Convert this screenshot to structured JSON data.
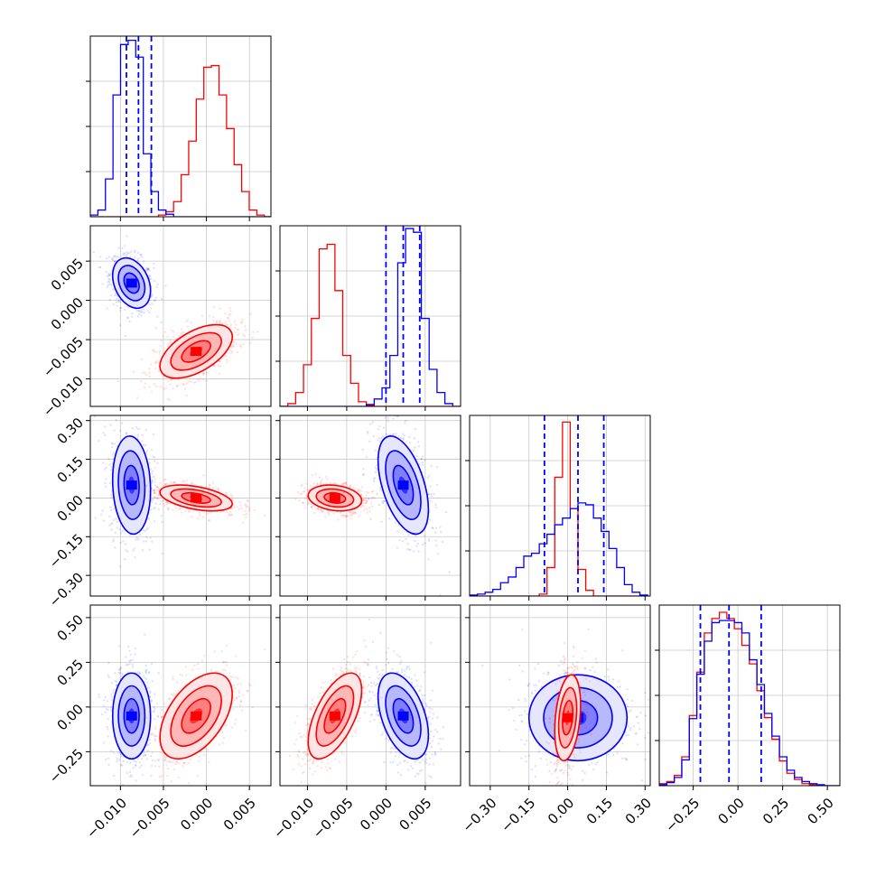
{
  "chart_data": {
    "type": "corner",
    "n_params": 4,
    "series": [
      {
        "color": "#0000ff"
      },
      {
        "color": "#ff0000"
      }
    ],
    "param_ranges": [
      [
        -0.0135,
        0.0075
      ],
      [
        -0.0135,
        0.0095
      ],
      [
        -0.38,
        0.32
      ],
      [
        -0.44,
        0.57
      ]
    ],
    "tick_labels": [
      {
        "values": [
          -0.01,
          -0.005,
          0.0,
          0.005
        ],
        "labels": [
          "−0.010",
          "−0.005",
          "0.000",
          "0.005"
        ]
      },
      {
        "values": [
          -0.01,
          -0.005,
          0.0,
          0.005
        ],
        "labels": [
          "−0.010",
          "−0.005",
          "0.000",
          "0.005"
        ]
      },
      {
        "values": [
          -0.3,
          -0.15,
          0.0,
          0.15,
          0.3
        ],
        "labels": [
          "−0.30",
          "−0.15",
          "0.00",
          "0.15",
          "0.30"
        ]
      },
      {
        "values": [
          -0.25,
          0.0,
          0.25,
          0.5
        ],
        "labels": [
          "−0.25",
          "0.00",
          "0.25",
          "0.50"
        ]
      }
    ],
    "marginals": [
      {
        "ymax": 215,
        "series": [
          {
            "name": "",
            "color": "#0000ff",
            "quantiles": [
              -0.0093,
              -0.0079,
              -0.0064
            ],
            "bins": [
              -0.0135,
              -0.01262,
              -0.01174,
              -0.01086,
              -0.00998,
              -0.0091,
              -0.00822,
              -0.00734,
              -0.00646,
              -0.00558,
              -0.0047,
              -0.00382,
              -0.00294,
              -0.00206,
              -0.00118,
              -0.0003,
              0.00058,
              0.00146,
              0.00234,
              0.00322,
              0.0041,
              0.00498,
              0.00586,
              0.00674,
              0.0075
            ],
            "counts": [
              2,
              8,
              45,
              145,
              205,
              210,
              190,
              75,
              30,
              8,
              3,
              0,
              0,
              0,
              0,
              0,
              0,
              0,
              0,
              0,
              0,
              0,
              0,
              0
            ]
          },
          {
            "name": "",
            "color": "#ff0000",
            "quantiles": [],
            "bins": [
              -0.0135,
              -0.01262,
              -0.01174,
              -0.01086,
              -0.00998,
              -0.0091,
              -0.00822,
              -0.00734,
              -0.00646,
              -0.00558,
              -0.0047,
              -0.00382,
              -0.00294,
              -0.00206,
              -0.00118,
              -0.0003,
              0.00058,
              0.00146,
              0.00234,
              0.00322,
              0.0041,
              0.00498,
              0.00586,
              0.00674,
              0.0075
            ],
            "counts": [
              0,
              0,
              0,
              0,
              0,
              0,
              0,
              0,
              0,
              2,
              6,
              18,
              50,
              90,
              140,
              178,
              180,
              145,
              105,
              62,
              30,
              8,
              2,
              0
            ]
          }
        ]
      },
      {
        "ymax": 195,
        "series": [
          {
            "name": "",
            "color": "#0000ff",
            "quantiles": [
              0.0,
              0.0022,
              0.0043
            ],
            "bins": [
              -0.0135,
              -0.0125,
              -0.0115,
              -0.0105,
              -0.0095,
              -0.0085,
              -0.0075,
              -0.0065,
              -0.0055,
              -0.0045,
              -0.0035,
              -0.0025,
              -0.0015,
              -0.0005,
              0.0005,
              0.0015,
              0.0025,
              0.0035,
              0.0045,
              0.0055,
              0.0065,
              0.0075,
              0.0085,
              0.0095
            ],
            "counts": [
              0,
              0,
              0,
              0,
              0,
              0,
              0,
              0,
              0,
              0,
              0,
              2,
              8,
              20,
              55,
              155,
              192,
              188,
              95,
              40,
              15,
              3,
              0
            ]
          },
          {
            "name": "",
            "color": "#ff0000",
            "quantiles": [],
            "bins": [
              -0.0135,
              -0.0125,
              -0.0115,
              -0.0105,
              -0.0095,
              -0.0085,
              -0.0075,
              -0.0065,
              -0.0055,
              -0.0045,
              -0.0035,
              -0.0025,
              -0.0015,
              -0.0005,
              0.0005,
              0.0015,
              0.0025,
              0.0035,
              0.0045,
              0.0055,
              0.0065,
              0.0075,
              0.0085,
              0.0095
            ],
            "counts": [
              0,
              3,
              15,
              45,
              95,
              170,
              175,
              125,
              55,
              25,
              5,
              1,
              0,
              0,
              0,
              0,
              0,
              0,
              0,
              0,
              0,
              0,
              0
            ]
          }
        ]
      },
      {
        "ymax": 190,
        "series": [
          {
            "name": "",
            "color": "#0000ff",
            "quantiles": [
              -0.09,
              0.04,
              0.14
            ],
            "bins": [
              -0.38,
              -0.35,
              -0.32,
              -0.29,
              -0.26,
              -0.23,
              -0.2,
              -0.17,
              -0.14,
              -0.11,
              -0.08,
              -0.05,
              -0.02,
              0.01,
              0.04,
              0.07,
              0.1,
              0.13,
              0.16,
              0.19,
              0.22,
              0.25,
              0.28,
              0.31
            ],
            "counts": [
              1,
              2,
              4,
              7,
              14,
              20,
              30,
              42,
              45,
              55,
              65,
              75,
              82,
              92,
              98,
              96,
              82,
              68,
              50,
              30,
              12,
              4,
              1
            ]
          },
          {
            "name": "",
            "color": "#ff0000",
            "quantiles": [],
            "bins": [
              -0.38,
              -0.35,
              -0.32,
              -0.29,
              -0.26,
              -0.23,
              -0.2,
              -0.17,
              -0.14,
              -0.11,
              -0.08,
              -0.05,
              -0.02,
              0.01,
              0.04,
              0.07,
              0.1,
              0.13,
              0.16,
              0.19,
              0.22,
              0.25,
              0.28,
              0.31
            ],
            "counts": [
              0,
              0,
              0,
              0,
              0,
              0,
              0,
              0,
              0,
              2,
              30,
              125,
              183,
              92,
              28,
              6,
              0,
              0,
              0,
              0,
              0,
              0,
              0
            ]
          }
        ]
      },
      {
        "ymax": 175,
        "series": [
          {
            "name": "",
            "color": "#0000ff",
            "quantiles": [
              -0.21,
              -0.05,
              0.13
            ],
            "bins": [
              -0.44,
              -0.398,
              -0.356,
              -0.314,
              -0.272,
              -0.23,
              -0.188,
              -0.146,
              -0.104,
              -0.062,
              -0.02,
              0.022,
              0.064,
              0.106,
              0.148,
              0.19,
              0.232,
              0.274,
              0.316,
              0.358,
              0.4,
              0.442,
              0.484,
              0.526,
              0.57
            ],
            "counts": [
              1,
              3,
              8,
              25,
              65,
              108,
              140,
              158,
              160,
              160,
              158,
              148,
              122,
              98,
              70,
              48,
              28,
              15,
              8,
              4,
              2,
              1,
              0,
              0
            ]
          },
          {
            "name": "",
            "color": "#ff0000",
            "quantiles": [],
            "bins": [
              -0.44,
              -0.398,
              -0.356,
              -0.314,
              -0.272,
              -0.23,
              -0.188,
              -0.146,
              -0.104,
              -0.062,
              -0.02,
              0.022,
              0.064,
              0.106,
              0.148,
              0.19,
              0.232,
              0.274,
              0.316,
              0.358,
              0.4,
              0.442,
              0.484,
              0.526,
              0.57
            ],
            "counts": [
              2,
              4,
              10,
              28,
              68,
              110,
              148,
              162,
              168,
              162,
              152,
              136,
              118,
              92,
              66,
              45,
              24,
              12,
              6,
              2,
              1,
              0,
              0,
              0
            ]
          }
        ]
      }
    ],
    "pairs": [
      {
        "row": 1,
        "col": 0,
        "blobs": [
          {
            "color": "#0000ff",
            "mean": [
              -0.0087,
              0.0022
            ],
            "sd": [
              0.0011,
              0.0016
            ],
            "corr": -0.3
          },
          {
            "color": "#ff0000",
            "mean": [
              -0.0012,
              -0.0065
            ],
            "sd": [
              0.0021,
              0.0017
            ],
            "corr": 0.55
          }
        ]
      },
      {
        "row": 2,
        "col": 0,
        "blobs": [
          {
            "color": "#0000ff",
            "mean": [
              -0.0087,
              0.05
            ],
            "sd": [
              0.0011,
              0.095
            ],
            "corr": -0.1
          },
          {
            "color": "#ff0000",
            "mean": [
              -0.0012,
              0.0
            ],
            "sd": [
              0.0021,
              0.025
            ],
            "corr": -0.45
          }
        ]
      },
      {
        "row": 2,
        "col": 1,
        "blobs": [
          {
            "color": "#0000ff",
            "mean": [
              0.0022,
              0.05
            ],
            "sd": [
              0.0016,
              0.095
            ],
            "corr": -0.5
          },
          {
            "color": "#ff0000",
            "mean": [
              -0.0065,
              0.0
            ],
            "sd": [
              0.0017,
              0.025
            ],
            "corr": -0.2
          }
        ]
      },
      {
        "row": 3,
        "col": 0,
        "blobs": [
          {
            "color": "#0000ff",
            "mean": [
              -0.0087,
              -0.05
            ],
            "sd": [
              0.0011,
              0.12
            ],
            "corr": 0.0
          },
          {
            "color": "#ff0000",
            "mean": [
              -0.0012,
              -0.05
            ],
            "sd": [
              0.0021,
              0.12
            ],
            "corr": 0.5
          }
        ]
      },
      {
        "row": 3,
        "col": 1,
        "blobs": [
          {
            "color": "#0000ff",
            "mean": [
              0.0022,
              -0.05
            ],
            "sd": [
              0.0016,
              0.12
            ],
            "corr": -0.45
          },
          {
            "color": "#ff0000",
            "mean": [
              -0.0065,
              -0.05
            ],
            "sd": [
              0.0017,
              0.12
            ],
            "corr": 0.6
          }
        ]
      },
      {
        "row": 3,
        "col": 2,
        "blobs": [
          {
            "color": "#0000ff",
            "mean": [
              0.04,
              -0.06
            ],
            "sd": [
              0.095,
              0.12
            ],
            "corr": 0.0
          },
          {
            "color": "#ff0000",
            "mean": [
              0.0,
              -0.06
            ],
            "sd": [
              0.025,
              0.12
            ],
            "corr": 0.3
          }
        ]
      }
    ],
    "grid": true,
    "contour_sigmas": [
      0.8,
      1.4,
      2.0
    ]
  }
}
